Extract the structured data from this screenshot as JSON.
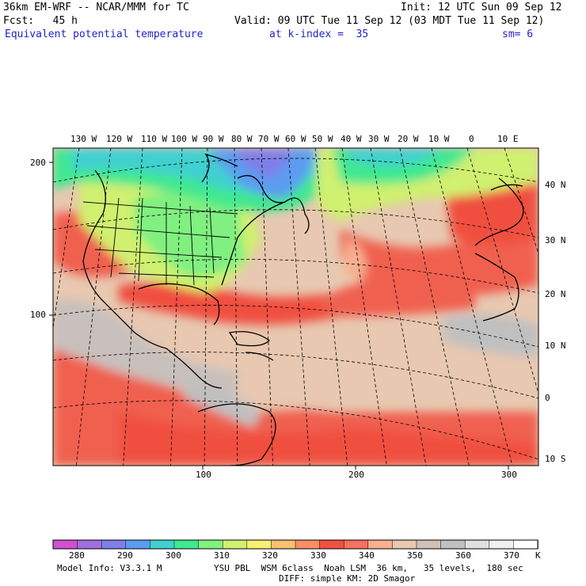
{
  "header": {
    "model_title": "36km EM-WRF -- NCAR/MMM for TC",
    "init": "Init: 12 UTC Sun 09 Sep 12",
    "forecast": "Fcst:   45 h",
    "valid": "Valid: 09 UTC Tue 11 Sep 12 (03 MDT Tue 11 Sep 12)",
    "field_name": "Equivalent potential temperature",
    "level": "at k-index =  35",
    "smoothing": "sm= 6"
  },
  "map": {
    "top_longitude_labels": [
      "130 W",
      "120 W",
      "110 W",
      "100 W",
      "90 W",
      "80 W",
      "70 W",
      "60 W",
      "50 W",
      "40 W",
      "30 W",
      "20 W",
      "10 W",
      "0",
      "10 E"
    ],
    "right_latitude_labels": [
      "40 N",
      "30 N",
      "20 N",
      "10 N",
      "0",
      "10 S"
    ],
    "left_grid_labels": [
      "200",
      "100"
    ],
    "bottom_grid_labels": [
      "100",
      "200",
      "300"
    ]
  },
  "colorbar": {
    "labels": [
      "280",
      "290",
      "300",
      "310",
      "320",
      "330",
      "340",
      "350",
      "360",
      "370"
    ],
    "unit": "K",
    "colors": [
      "#d050d0",
      "#a070e0",
      "#7f7fe8",
      "#5b9cf0",
      "#40d0d0",
      "#40e890",
      "#80f080",
      "#d0f070",
      "#f8f070",
      "#f8c070",
      "#f89060",
      "#f05040",
      "#f87060",
      "#f8b090",
      "#e8c8b0",
      "#d0c0b8",
      "#c0c0c0",
      "#e0e0e0",
      "#f0f0f0",
      "#ffffff"
    ]
  },
  "footer": {
    "model_info": "Model Info: V3.3.1 M",
    "physics": "YSU PBL  WSM 6class  Noah LSM  36 km,   35 levels,  180 sec",
    "diffusion": "DIFF: simple KM: 2D Smagor"
  }
}
